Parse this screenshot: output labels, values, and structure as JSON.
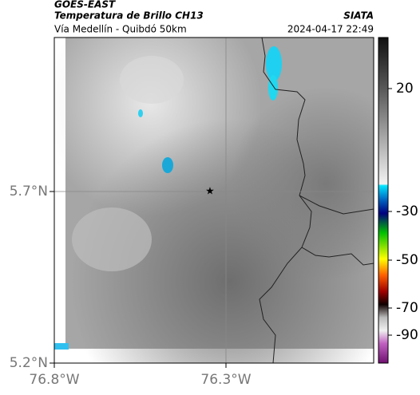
{
  "header": {
    "source": "GOES-EAST",
    "title": "Temperatura de Brillo CH13",
    "brand": "SIATA",
    "subtitle": "Vía Medellín - Quibdó 50km",
    "timestamp": "2024-04-17 22:49"
  },
  "map": {
    "lat_labels": [
      "5.7°N",
      "5.2°N"
    ],
    "lon_labels": [
      "76.8°W",
      "76.3°W"
    ]
  },
  "colorbar": {
    "ticks": [
      20,
      -30,
      -50,
      -70,
      -90
    ]
  }
}
